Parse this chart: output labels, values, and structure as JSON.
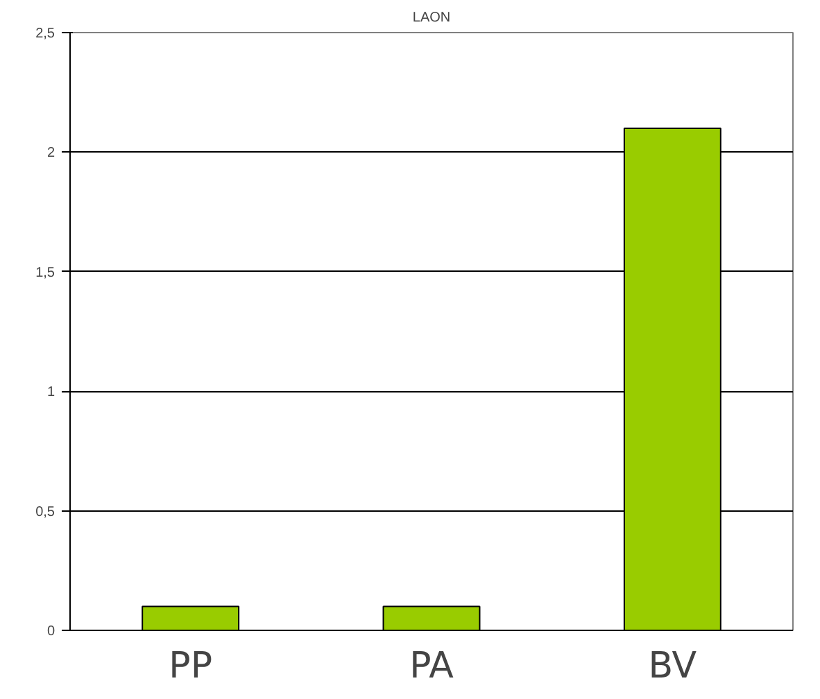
{
  "chart_data": {
    "type": "bar",
    "title": "LAON",
    "categories": [
      "PP",
      "PA",
      "BV"
    ],
    "values": [
      0.1,
      0.1,
      2.1
    ],
    "color": "#99cc00",
    "ylim": [
      0,
      2.5
    ],
    "yticks": [
      0,
      {
        "value": 0.5,
        "label": "0,5"
      },
      1,
      {
        "value": 1.5,
        "label": "1,5"
      },
      2,
      {
        "value": 2.5,
        "label": "2,5"
      }
    ],
    "grid": "y"
  }
}
